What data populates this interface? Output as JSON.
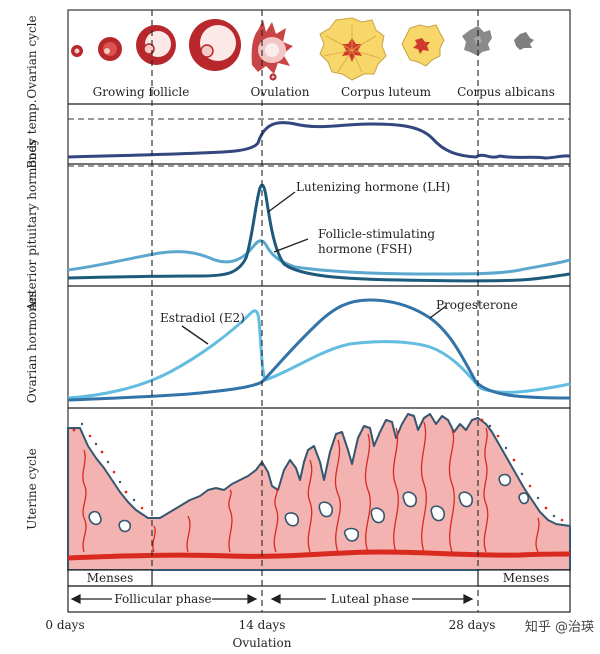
{
  "rows": {
    "ovarian_cycle": "Ovarian cycle",
    "body_temp": "Body temp.",
    "anterior_pituitary": "Anterior pituitary hormones",
    "ovarian_hormones": "Ovarian hormones",
    "uterine_cycle": "Uterine cycle"
  },
  "stages": {
    "growing_follicle": "Growing follicle",
    "ovulation": "Ovulation",
    "corpus_luteum": "Corpus luteum",
    "corpus_albicans": "Corpus albicans"
  },
  "hormones": {
    "lh": "Lutenizing hormone (LH)",
    "fsh_line1": "Follicle-stimulating",
    "fsh_line2": "hormone (FSH)",
    "estradiol": "Estradiol (E2)",
    "progesterone": "Progesterone"
  },
  "phases": {
    "menses_left": "Menses",
    "menses_right": "Menses",
    "follicular": "Follicular phase",
    "luteal": "Luteal phase"
  },
  "timeline": {
    "day0": "0 days",
    "day14": "14 days",
    "day28": "28 days",
    "ovulation": "Ovulation"
  },
  "watermark": "知乎 @治瑛",
  "colors": {
    "follicle_red": "#b8272b",
    "luteum_yellow": "#f7d66a",
    "albicans_gray": "#8a8a8a",
    "temp_line": "#34467f",
    "lh_line": "#1e5a7c",
    "fsh_line": "#5ba8cf",
    "estradiol_line": "#62bde0",
    "progesterone_line": "#3273a8",
    "endometrium_pink": "#f3b3b1",
    "vessel_red": "#d92a20",
    "uterine_outline": "#35566e"
  }
}
